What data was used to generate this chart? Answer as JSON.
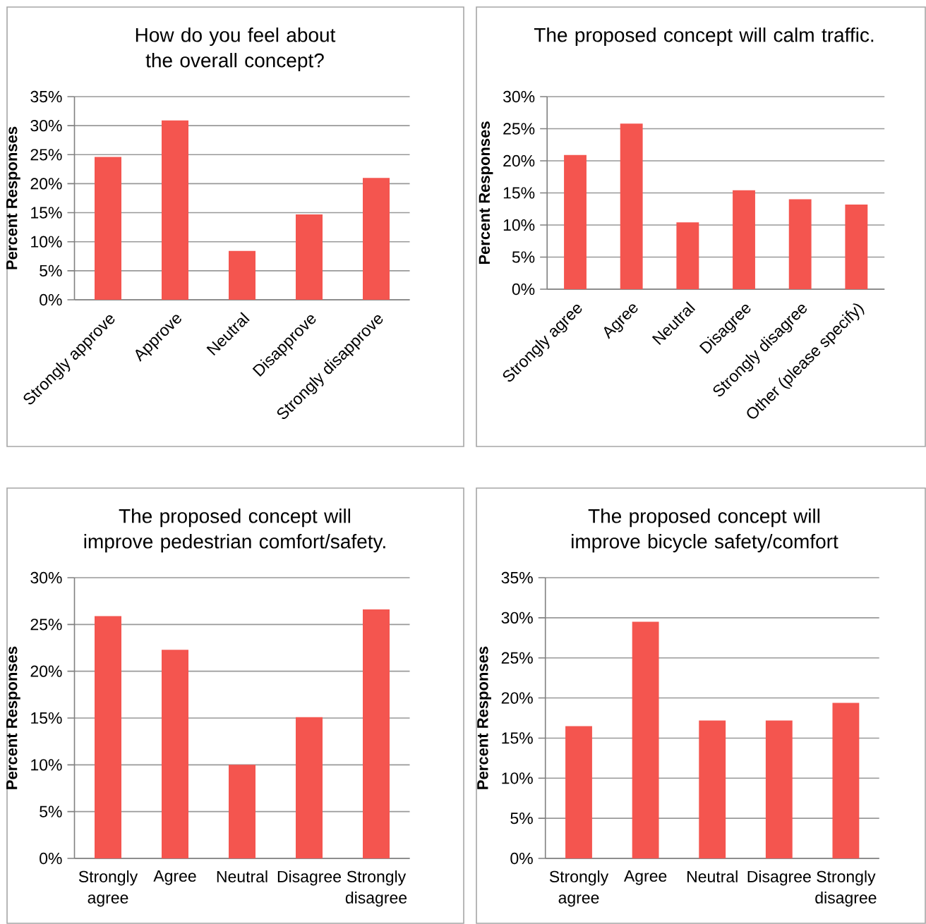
{
  "chart_data": [
    {
      "type": "bar",
      "title": "How do you feel about the overall concept?",
      "ylabel": "Percent Responses",
      "categories": [
        "Strongly approve",
        "Approve",
        "Neutral",
        "Disapprove",
        "Strongly disapprove"
      ],
      "values": [
        24.6,
        30.9,
        8.4,
        14.7,
        21.0
      ],
      "color": "#f4554f",
      "ylim": [
        0,
        35
      ],
      "yticks": [
        {
          "value": 0,
          "label": "0%"
        },
        {
          "value": 5,
          "label": "5%"
        },
        {
          "value": 10,
          "label": "10%"
        },
        {
          "value": 15,
          "label": "15%"
        },
        {
          "value": 20,
          "label": "20%"
        },
        {
          "value": 25,
          "label": "25%"
        },
        {
          "value": 30,
          "label": "30%"
        },
        {
          "value": 35,
          "label": "35%"
        }
      ],
      "grid": "y"
    },
    {
      "type": "bar",
      "title": "The proposed concept will calm traffic.",
      "ylabel": "Percent Responses",
      "categories": [
        "Strongly agree",
        "Agree",
        "Neutral",
        "Disagree",
        "Strongly disagree",
        "Other (please specify)"
      ],
      "values": [
        20.9,
        25.8,
        10.4,
        15.4,
        14.0,
        13.2
      ],
      "color": "#f4554f",
      "ylim": [
        0,
        30
      ],
      "yticks": [
        {
          "value": 0,
          "label": "0%"
        },
        {
          "value": 5,
          "label": "5%"
        },
        {
          "value": 10,
          "label": "10%"
        },
        {
          "value": 15,
          "label": "15%"
        },
        {
          "value": 20,
          "label": "20%"
        },
        {
          "value": 25,
          "label": "25%"
        },
        {
          "value": 30,
          "label": "30%"
        }
      ],
      "grid": "y"
    },
    {
      "type": "bar",
      "title": "The proposed concept will improve pedestrian comfort/safety.",
      "ylabel": "Percent Responses",
      "categories": [
        "Strongly agree",
        "Agree",
        "Neutral",
        "Disagree",
        "Strongly disagree"
      ],
      "values": [
        25.9,
        22.3,
        10.0,
        15.1,
        26.6
      ],
      "color": "#f4554f",
      "ylim": [
        0,
        30
      ],
      "yticks": [
        {
          "value": 0,
          "label": "0%"
        },
        {
          "value": 5,
          "label": "5%"
        },
        {
          "value": 10,
          "label": "10%"
        },
        {
          "value": 15,
          "label": "15%"
        },
        {
          "value": 20,
          "label": "20%"
        },
        {
          "value": 25,
          "label": "25%"
        },
        {
          "value": 30,
          "label": "30%"
        }
      ],
      "grid": "y"
    },
    {
      "type": "bar",
      "title": "The proposed concept will improve bicycle safety/comfort",
      "ylabel": "Percent Responses",
      "categories": [
        "Strongly agree",
        "Agree",
        "Neutral",
        "Disagree",
        "Strongly disagree"
      ],
      "values": [
        16.5,
        29.5,
        17.2,
        17.2,
        19.4
      ],
      "color": "#f4554f",
      "ylim": [
        0,
        35
      ],
      "yticks": [
        {
          "value": 0,
          "label": "0%"
        },
        {
          "value": 5,
          "label": "5%"
        },
        {
          "value": 10,
          "label": "10%"
        },
        {
          "value": 15,
          "label": "15%"
        },
        {
          "value": 20,
          "label": "20%"
        },
        {
          "value": 25,
          "label": "25%"
        },
        {
          "value": 30,
          "label": "30%"
        },
        {
          "value": 35,
          "label": "35%"
        }
      ],
      "grid": "y"
    }
  ]
}
